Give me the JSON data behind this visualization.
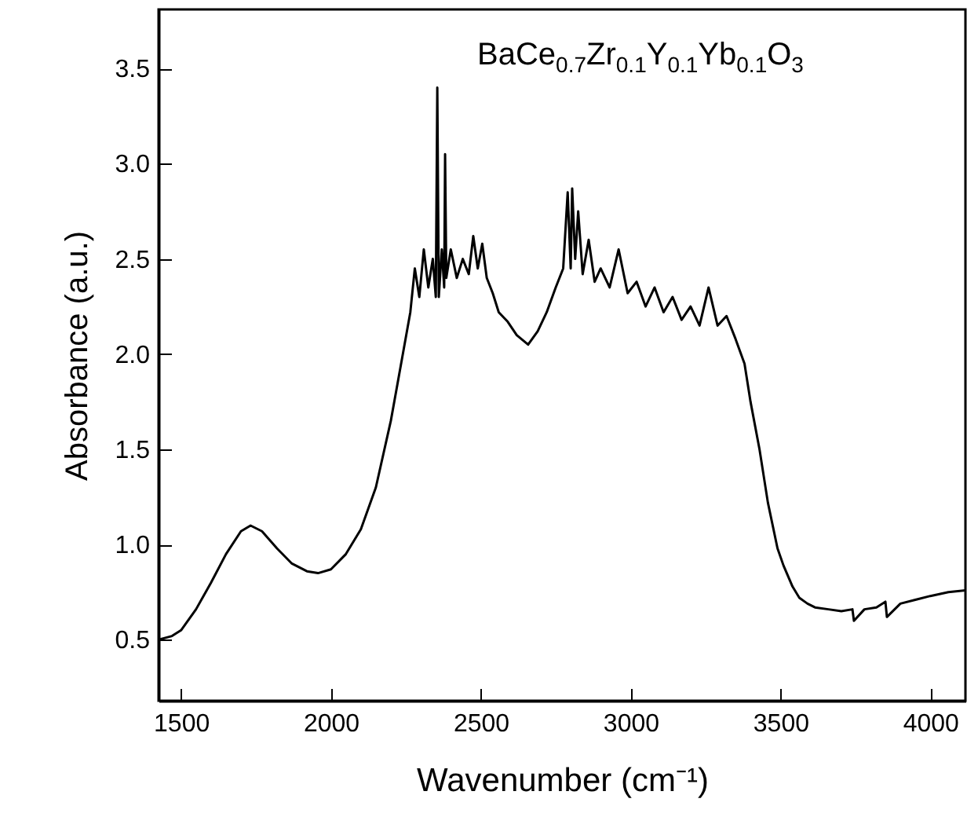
{
  "chart_data": {
    "type": "line",
    "xlabel": "Wavenumber (cm⁻¹)",
    "ylabel": "Absorbance (a.u.)",
    "annotations": [
      "BaCe$_{0.7}$Zr$_{0.1}$Y$_{0.1}$Yb$_{0.1}$O$_{3}$"
    ],
    "xlim": [
      1425,
      4117
    ],
    "xticks": [
      1500,
      2000,
      2500,
      3000,
      3500,
      4000
    ],
    "ylim": [
      0.18,
      3.81
    ],
    "yticks": [
      {
        "value": 0.5,
        "label": "0.5"
      },
      {
        "value": 1,
        "label": "1.0"
      },
      {
        "value": 1.5,
        "label": "1.5"
      },
      {
        "value": 2,
        "label": "2.0"
      },
      {
        "value": 2.5,
        "label": "2.5"
      },
      {
        "value": 3,
        "label": "3.0"
      },
      {
        "value": 3.5,
        "label": "3.5"
      }
    ],
    "line_style": "solid",
    "series": [
      {
        "color": "#000000",
        "x": [
          1425,
          1470,
          1500,
          1550,
          1600,
          1650,
          1700,
          1732,
          1770,
          1820,
          1870,
          1920,
          1957,
          2000,
          2050,
          2100,
          2150,
          2200,
          2240,
          2265,
          2280,
          2295,
          2310,
          2325,
          2340,
          2350,
          2355,
          2360,
          2370,
          2378,
          2381,
          2385,
          2400,
          2420,
          2440,
          2460,
          2475,
          2490,
          2505,
          2520,
          2540,
          2560,
          2590,
          2620,
          2658,
          2690,
          2720,
          2750,
          2775,
          2790,
          2800,
          2805,
          2815,
          2825,
          2840,
          2860,
          2880,
          2900,
          2930,
          2960,
          2990,
          3020,
          3050,
          3080,
          3110,
          3140,
          3170,
          3200,
          3230,
          3260,
          3290,
          3320,
          3350,
          3380,
          3400,
          3430,
          3458,
          3490,
          3510,
          3540,
          3563,
          3590,
          3615,
          3660,
          3703,
          3740,
          3745,
          3780,
          3820,
          3850,
          3855,
          3900,
          3950,
          4000,
          4060,
          4117
        ],
        "values": [
          0.5,
          0.52,
          0.55,
          0.66,
          0.8,
          0.95,
          1.07,
          1.1,
          1.07,
          0.98,
          0.9,
          0.86,
          0.85,
          0.87,
          0.95,
          1.08,
          1.3,
          1.65,
          2.0,
          2.22,
          2.45,
          2.3,
          2.55,
          2.35,
          2.5,
          2.3,
          3.4,
          2.3,
          2.55,
          2.35,
          3.05,
          2.4,
          2.55,
          2.4,
          2.5,
          2.42,
          2.62,
          2.45,
          2.58,
          2.4,
          2.32,
          2.22,
          2.17,
          2.1,
          2.05,
          2.12,
          2.22,
          2.35,
          2.45,
          2.85,
          2.45,
          2.87,
          2.5,
          2.75,
          2.42,
          2.6,
          2.38,
          2.45,
          2.35,
          2.55,
          2.32,
          2.38,
          2.25,
          2.35,
          2.22,
          2.3,
          2.18,
          2.25,
          2.15,
          2.35,
          2.15,
          2.2,
          2.08,
          1.95,
          1.75,
          1.5,
          1.22,
          0.98,
          0.89,
          0.78,
          0.72,
          0.69,
          0.67,
          0.66,
          0.65,
          0.66,
          0.6,
          0.66,
          0.67,
          0.7,
          0.62,
          0.69,
          0.71,
          0.73,
          0.75,
          0.76
        ]
      }
    ]
  }
}
